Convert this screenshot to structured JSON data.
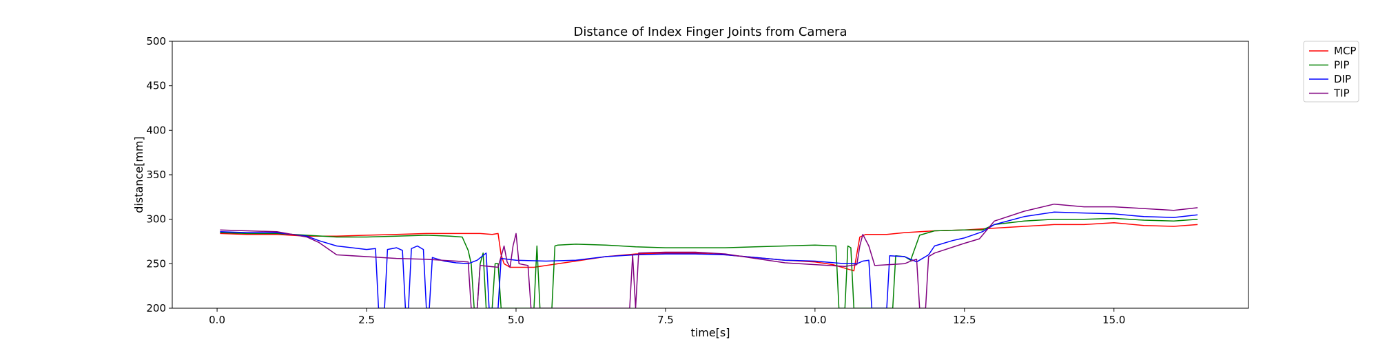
{
  "chart_data": {
    "type": "line",
    "title": "Distance of Index Finger Joints from Camera",
    "xlabel": "time[s]",
    "ylabel": "distance[mm]",
    "xlim": [
      -0.75,
      17.25
    ],
    "ylim": [
      200,
      500
    ],
    "x_ticks": [
      0.0,
      2.5,
      5.0,
      7.5,
      10.0,
      12.5,
      15.0
    ],
    "x_tick_labels": [
      "0.0",
      "2.5",
      "5.0",
      "7.5",
      "10.0",
      "12.5",
      "15.0"
    ],
    "y_ticks": [
      200,
      250,
      300,
      350,
      400,
      450,
      500
    ],
    "y_tick_labels": [
      "200",
      "250",
      "300",
      "350",
      "400",
      "450",
      "500"
    ],
    "grid": false,
    "legend_position": "outside-top-right",
    "series": [
      {
        "name": "MCP",
        "color": "#ff0000",
        "points": [
          [
            0.05,
            284
          ],
          [
            0.5,
            283
          ],
          [
            1.0,
            283
          ],
          [
            1.5,
            281
          ],
          [
            2.0,
            281
          ],
          [
            2.5,
            282
          ],
          [
            3.0,
            283
          ],
          [
            3.5,
            284
          ],
          [
            4.0,
            284
          ],
          [
            4.4,
            284
          ],
          [
            4.6,
            283
          ],
          [
            4.7,
            284
          ],
          [
            4.75,
            260
          ],
          [
            4.8,
            250
          ],
          [
            4.9,
            246
          ],
          [
            5.0,
            246
          ],
          [
            5.3,
            246
          ],
          [
            5.6,
            249
          ],
          [
            6.0,
            253
          ],
          [
            6.5,
            258
          ],
          [
            7.0,
            261
          ],
          [
            7.5,
            262
          ],
          [
            8.0,
            262
          ],
          [
            8.5,
            260
          ],
          [
            9.0,
            257
          ],
          [
            9.5,
            254
          ],
          [
            10.0,
            252
          ],
          [
            10.3,
            249
          ],
          [
            10.5,
            245
          ],
          [
            10.65,
            242
          ],
          [
            10.75,
            280
          ],
          [
            10.85,
            283
          ],
          [
            11.2,
            283
          ],
          [
            11.5,
            285
          ],
          [
            12.0,
            287
          ],
          [
            12.5,
            288
          ],
          [
            13.0,
            290
          ],
          [
            13.5,
            292
          ],
          [
            14.0,
            294
          ],
          [
            14.5,
            294
          ],
          [
            15.0,
            296
          ],
          [
            15.5,
            293
          ],
          [
            16.0,
            292
          ],
          [
            16.4,
            294
          ]
        ]
      },
      {
        "name": "PIP",
        "color": "#008000",
        "points": [
          [
            0.05,
            285
          ],
          [
            0.5,
            284
          ],
          [
            1.0,
            284
          ],
          [
            1.5,
            282
          ],
          [
            2.0,
            280
          ],
          [
            2.5,
            280
          ],
          [
            3.0,
            281
          ],
          [
            3.5,
            282
          ],
          [
            3.9,
            281
          ],
          [
            4.1,
            280
          ],
          [
            4.2,
            265
          ],
          [
            4.25,
            250
          ],
          [
            4.3,
            200
          ],
          [
            4.35,
            200
          ],
          [
            4.4,
            250
          ],
          [
            4.45,
            262
          ],
          [
            4.5,
            200
          ],
          [
            4.6,
            200
          ],
          [
            4.65,
            250
          ],
          [
            4.7,
            250
          ],
          [
            4.75,
            200
          ],
          [
            4.9,
            200
          ],
          [
            5.3,
            200
          ],
          [
            5.35,
            270
          ],
          [
            5.4,
            200
          ],
          [
            5.6,
            200
          ],
          [
            5.65,
            270
          ],
          [
            5.7,
            271
          ],
          [
            6.0,
            272
          ],
          [
            6.5,
            271
          ],
          [
            7.0,
            269
          ],
          [
            7.5,
            268
          ],
          [
            8.0,
            268
          ],
          [
            8.5,
            268
          ],
          [
            9.0,
            269
          ],
          [
            9.5,
            270
          ],
          [
            10.0,
            271
          ],
          [
            10.35,
            270
          ],
          [
            10.4,
            200
          ],
          [
            10.5,
            200
          ],
          [
            10.55,
            270
          ],
          [
            10.6,
            268
          ],
          [
            10.65,
            200
          ],
          [
            11.3,
            200
          ],
          [
            11.35,
            259
          ],
          [
            11.5,
            258
          ],
          [
            11.6,
            254
          ],
          [
            11.75,
            282
          ],
          [
            12.0,
            287
          ],
          [
            12.5,
            288
          ],
          [
            12.8,
            288
          ],
          [
            13.0,
            294
          ],
          [
            13.5,
            298
          ],
          [
            14.0,
            300
          ],
          [
            14.5,
            300
          ],
          [
            15.0,
            301
          ],
          [
            15.5,
            299
          ],
          [
            16.0,
            298
          ],
          [
            16.4,
            300
          ]
        ]
      },
      {
        "name": "DIP",
        "color": "#0000ff",
        "points": [
          [
            0.05,
            286
          ],
          [
            0.5,
            285
          ],
          [
            1.0,
            285
          ],
          [
            1.5,
            281
          ],
          [
            1.7,
            276
          ],
          [
            2.0,
            270
          ],
          [
            2.5,
            266
          ],
          [
            2.65,
            267
          ],
          [
            2.7,
            200
          ],
          [
            2.8,
            200
          ],
          [
            2.85,
            266
          ],
          [
            3.0,
            268
          ],
          [
            3.1,
            265
          ],
          [
            3.15,
            200
          ],
          [
            3.2,
            200
          ],
          [
            3.25,
            267
          ],
          [
            3.35,
            270
          ],
          [
            3.45,
            266
          ],
          [
            3.5,
            200
          ],
          [
            3.55,
            200
          ],
          [
            3.6,
            257
          ],
          [
            3.8,
            253
          ],
          [
            4.0,
            251
          ],
          [
            4.2,
            250
          ],
          [
            4.35,
            254
          ],
          [
            4.5,
            262
          ],
          [
            4.55,
            200
          ],
          [
            4.7,
            200
          ],
          [
            4.75,
            256
          ],
          [
            5.0,
            254
          ],
          [
            5.5,
            253
          ],
          [
            6.0,
            254
          ],
          [
            6.5,
            258
          ],
          [
            7.0,
            260
          ],
          [
            7.5,
            261
          ],
          [
            8.0,
            261
          ],
          [
            8.5,
            260
          ],
          [
            9.0,
            257
          ],
          [
            9.5,
            254
          ],
          [
            10.0,
            253
          ],
          [
            10.5,
            250
          ],
          [
            10.7,
            250
          ],
          [
            10.8,
            253
          ],
          [
            10.9,
            254
          ],
          [
            10.95,
            200
          ],
          [
            11.2,
            200
          ],
          [
            11.25,
            259
          ],
          [
            11.5,
            258
          ],
          [
            11.7,
            252
          ],
          [
            11.9,
            260
          ],
          [
            12.0,
            270
          ],
          [
            12.3,
            276
          ],
          [
            12.5,
            279
          ],
          [
            12.8,
            286
          ],
          [
            13.0,
            294
          ],
          [
            13.5,
            303
          ],
          [
            14.0,
            308
          ],
          [
            14.5,
            307
          ],
          [
            15.0,
            306
          ],
          [
            15.5,
            303
          ],
          [
            16.0,
            302
          ],
          [
            16.4,
            305
          ]
        ]
      },
      {
        "name": "TIP",
        "color": "#800080",
        "points": [
          [
            0.05,
            288
          ],
          [
            0.5,
            287
          ],
          [
            1.0,
            286
          ],
          [
            1.5,
            280
          ],
          [
            1.7,
            274
          ],
          [
            2.0,
            260
          ],
          [
            2.5,
            258
          ],
          [
            3.0,
            256
          ],
          [
            3.5,
            255
          ],
          [
            4.0,
            253
          ],
          [
            4.2,
            252
          ],
          [
            4.25,
            200
          ],
          [
            4.35,
            200
          ],
          [
            4.4,
            248
          ],
          [
            4.7,
            246
          ],
          [
            4.8,
            270
          ],
          [
            4.85,
            252
          ],
          [
            4.9,
            246
          ],
          [
            4.95,
            270
          ],
          [
            5.0,
            284
          ],
          [
            5.05,
            250
          ],
          [
            5.2,
            248
          ],
          [
            5.25,
            200
          ],
          [
            5.6,
            200
          ],
          [
            6.0,
            200
          ],
          [
            6.5,
            200
          ],
          [
            6.9,
            200
          ],
          [
            6.95,
            260
          ],
          [
            7.0,
            200
          ],
          [
            7.05,
            262
          ],
          [
            7.5,
            263
          ],
          [
            8.0,
            263
          ],
          [
            8.5,
            261
          ],
          [
            9.0,
            256
          ],
          [
            9.5,
            251
          ],
          [
            10.0,
            249
          ],
          [
            10.5,
            247
          ],
          [
            10.7,
            249
          ],
          [
            10.75,
            270
          ],
          [
            10.8,
            283
          ],
          [
            10.9,
            270
          ],
          [
            11.0,
            248
          ],
          [
            11.5,
            250
          ],
          [
            11.6,
            253
          ],
          [
            11.7,
            255
          ],
          [
            11.75,
            200
          ],
          [
            11.85,
            200
          ],
          [
            11.9,
            258
          ],
          [
            12.0,
            262
          ],
          [
            12.5,
            273
          ],
          [
            12.75,
            278
          ],
          [
            13.0,
            298
          ],
          [
            13.5,
            309
          ],
          [
            14.0,
            317
          ],
          [
            14.5,
            314
          ],
          [
            15.0,
            314
          ],
          [
            15.5,
            312
          ],
          [
            16.0,
            310
          ],
          [
            16.4,
            313
          ]
        ]
      }
    ]
  }
}
